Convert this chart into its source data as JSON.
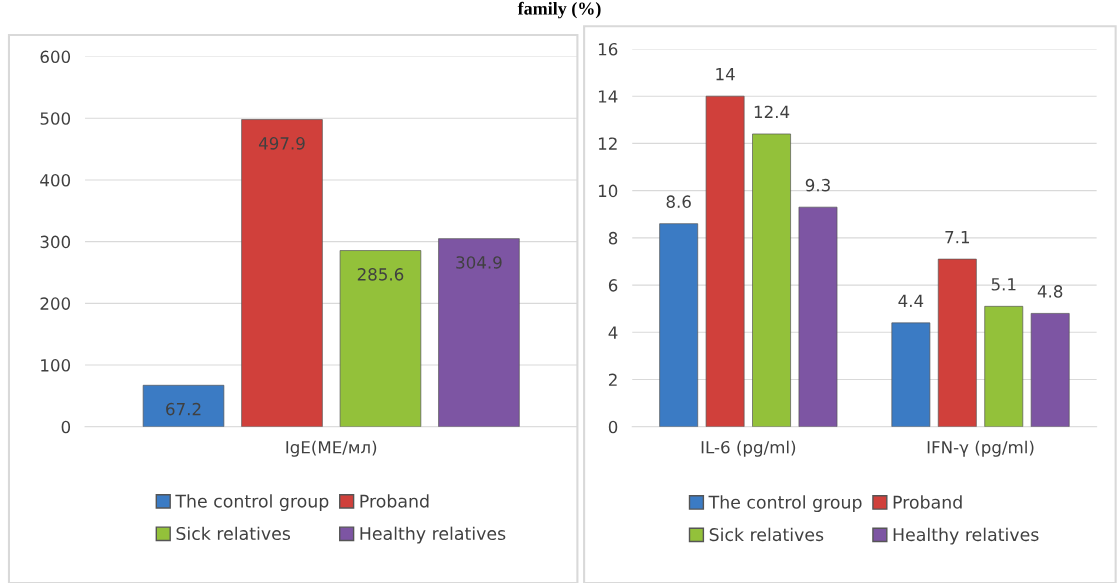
{
  "chart_data": [
    {
      "type": "bar",
      "title": "family (%)",
      "categories": [
        "IgE(МЕ/мл)"
      ],
      "series": [
        {
          "name": "The control group",
          "color": "#3b7bc4",
          "values": [
            67.2
          ]
        },
        {
          "name": "Proband",
          "color": "#d0403b",
          "values": [
            497.9
          ]
        },
        {
          "name": "Sick relatives",
          "color": "#93c13a",
          "values": [
            285.6
          ]
        },
        {
          "name": "Healthy relatives",
          "color": "#7d55a3",
          "values": [
            304.9
          ]
        }
      ],
      "ylim": [
        0,
        600
      ],
      "yticks": [
        0,
        100,
        200,
        300,
        400,
        500,
        600
      ],
      "grid": "y",
      "legend": "bottom",
      "data_labels": true
    },
    {
      "type": "bar",
      "categories": [
        "IL-6 (pg/ml)",
        "IFN-γ (pg/ml)"
      ],
      "series": [
        {
          "name": "The control group",
          "color": "#3b7bc4",
          "values": [
            8.6,
            4.4
          ]
        },
        {
          "name": "Proband",
          "color": "#d0403b",
          "values": [
            14,
            7.1
          ]
        },
        {
          "name": "Sick relatives",
          "color": "#93c13a",
          "values": [
            12.4,
            5.1
          ]
        },
        {
          "name": "Healthy relatives",
          "color": "#7d55a3",
          "values": [
            9.3,
            4.8
          ]
        }
      ],
      "ylim": [
        0,
        16
      ],
      "yticks": [
        0,
        2,
        4,
        6,
        8,
        10,
        12,
        14,
        16
      ],
      "grid": "y",
      "legend": "bottom",
      "data_labels": true
    }
  ]
}
